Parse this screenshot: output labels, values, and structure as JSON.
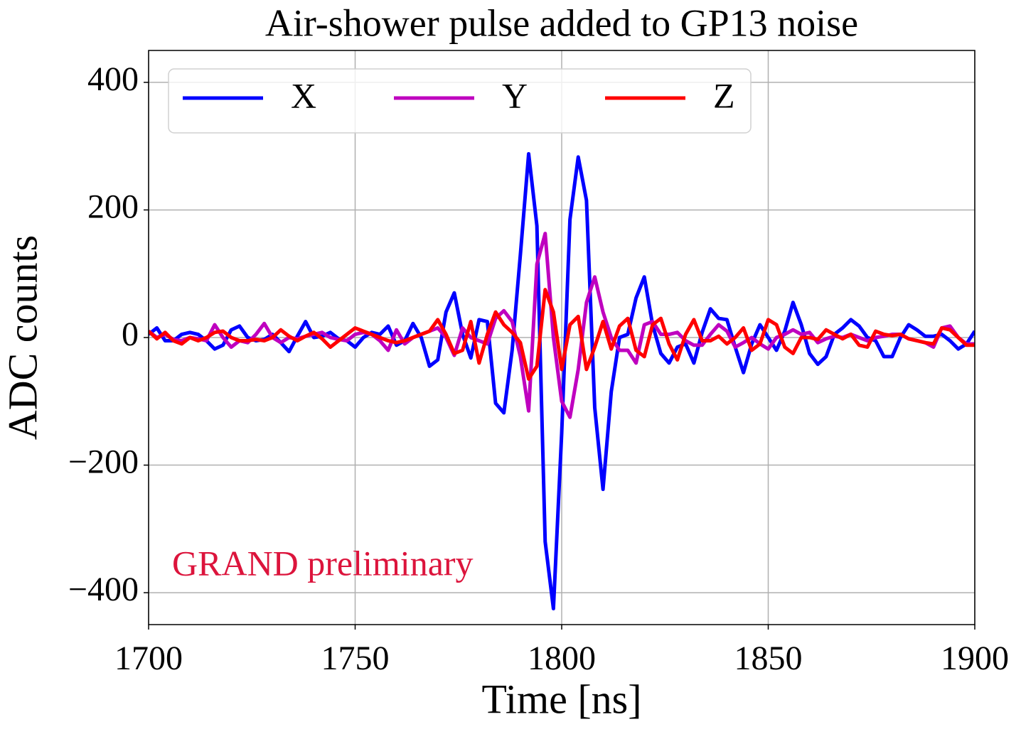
{
  "chart_data": {
    "type": "line",
    "title": "Air-shower pulse added to GP13 noise",
    "x_label": "Time [ns]",
    "y_label": "ADC counts",
    "annotation": "GRAND preliminary",
    "annotation_color": "#dc143c",
    "xlim": [
      1700,
      1900
    ],
    "xticks": [
      1700,
      1750,
      1800,
      1850,
      1900
    ],
    "ylim": [
      -450,
      450
    ],
    "yticks": [
      {
        "value": -400,
        "label": "−400"
      },
      {
        "value": -200,
        "label": "−200"
      },
      0,
      200,
      400
    ],
    "grid": true,
    "legend_position": "upper-left",
    "x": [
      1700,
      1702,
      1704,
      1706,
      1708,
      1710,
      1712,
      1714,
      1716,
      1718,
      1720,
      1722,
      1724,
      1726,
      1728,
      1730,
      1732,
      1734,
      1736,
      1738,
      1740,
      1742,
      1744,
      1746,
      1748,
      1750,
      1752,
      1754,
      1756,
      1758,
      1760,
      1762,
      1764,
      1766,
      1768,
      1770,
      1772,
      1774,
      1776,
      1778,
      1780,
      1782,
      1784,
      1786,
      1788,
      1790,
      1792,
      1794,
      1796,
      1798,
      1800,
      1802,
      1804,
      1806,
      1808,
      1810,
      1812,
      1814,
      1816,
      1818,
      1820,
      1822,
      1824,
      1826,
      1828,
      1830,
      1832,
      1834,
      1836,
      1838,
      1840,
      1842,
      1844,
      1846,
      1848,
      1850,
      1852,
      1854,
      1856,
      1858,
      1860,
      1862,
      1864,
      1866,
      1868,
      1870,
      1872,
      1874,
      1876,
      1878,
      1880,
      1882,
      1884,
      1886,
      1888,
      1890,
      1892,
      1894,
      1896,
      1898,
      1900
    ],
    "series": [
      {
        "name": "X",
        "color": "#0000ff",
        "values": [
          5,
          15,
          -5,
          -5,
          5,
          8,
          5,
          -5,
          -18,
          -12,
          12,
          18,
          0,
          -5,
          -3,
          5,
          -8,
          -22,
          2,
          25,
          0,
          2,
          8,
          -2,
          -5,
          -15,
          0,
          8,
          5,
          18,
          -12,
          -5,
          22,
          0,
          -45,
          -35,
          40,
          70,
          5,
          -32,
          28,
          25,
          -103,
          -118,
          -20,
          130,
          288,
          175,
          -320,
          -425,
          -150,
          185,
          283,
          215,
          -110,
          -238,
          -85,
          0,
          5,
          62,
          95,
          20,
          -25,
          -40,
          -15,
          -10,
          -40,
          8,
          45,
          30,
          28,
          -15,
          -55,
          -10,
          20,
          0,
          -20,
          10,
          55,
          20,
          -25,
          -42,
          -30,
          5,
          15,
          28,
          18,
          0,
          -5,
          -30,
          -30,
          0,
          20,
          12,
          2,
          2,
          5,
          -5,
          -18,
          -10,
          10
        ]
      },
      {
        "name": "Y",
        "color": "#bf00bf",
        "values": [
          10,
          0,
          5,
          -3,
          -5,
          0,
          -2,
          -5,
          20,
          0,
          -15,
          -5,
          -8,
          5,
          22,
          0,
          -8,
          0,
          -2,
          2,
          5,
          8,
          0,
          -3,
          -5,
          5,
          8,
          5,
          -5,
          -20,
          12,
          -10,
          0,
          5,
          10,
          15,
          0,
          -28,
          15,
          0,
          -5,
          -10,
          30,
          42,
          25,
          -30,
          -115,
          115,
          163,
          0,
          -100,
          -125,
          -50,
          55,
          95,
          40,
          0,
          -20,
          -20,
          -40,
          20,
          25,
          5,
          5,
          8,
          -5,
          -12,
          -12,
          5,
          20,
          10,
          -15,
          -8,
          0,
          -10,
          -18,
          0,
          5,
          12,
          5,
          8,
          -8,
          -2,
          2,
          0,
          5,
          0,
          -5,
          0,
          2,
          5,
          5,
          -2,
          -5,
          -8,
          -15,
          15,
          18,
          0,
          -10,
          -10
        ]
      },
      {
        "name": "Z",
        "color": "#ff0000",
        "values": [
          10,
          -2,
          8,
          -5,
          -10,
          0,
          -5,
          0,
          8,
          10,
          0,
          -5,
          -5,
          -3,
          -5,
          0,
          12,
          2,
          -5,
          2,
          8,
          -2,
          -15,
          -5,
          5,
          15,
          10,
          5,
          0,
          -5,
          -8,
          -5,
          0,
          5,
          10,
          28,
          5,
          -25,
          -20,
          25,
          -40,
          5,
          40,
          20,
          8,
          -8,
          -65,
          -45,
          75,
          40,
          -50,
          20,
          33,
          -50,
          -15,
          25,
          -18,
          18,
          30,
          -20,
          -30,
          20,
          30,
          -10,
          -35,
          5,
          28,
          -5,
          -5,
          2,
          -10,
          0,
          15,
          -20,
          -10,
          28,
          20,
          -15,
          -25,
          0,
          0,
          -3,
          12,
          5,
          -2,
          5,
          -12,
          -15,
          10,
          5,
          3,
          5,
          -2,
          -5,
          -8,
          -10,
          15,
          12,
          0,
          -12,
          -12
        ]
      }
    ]
  }
}
